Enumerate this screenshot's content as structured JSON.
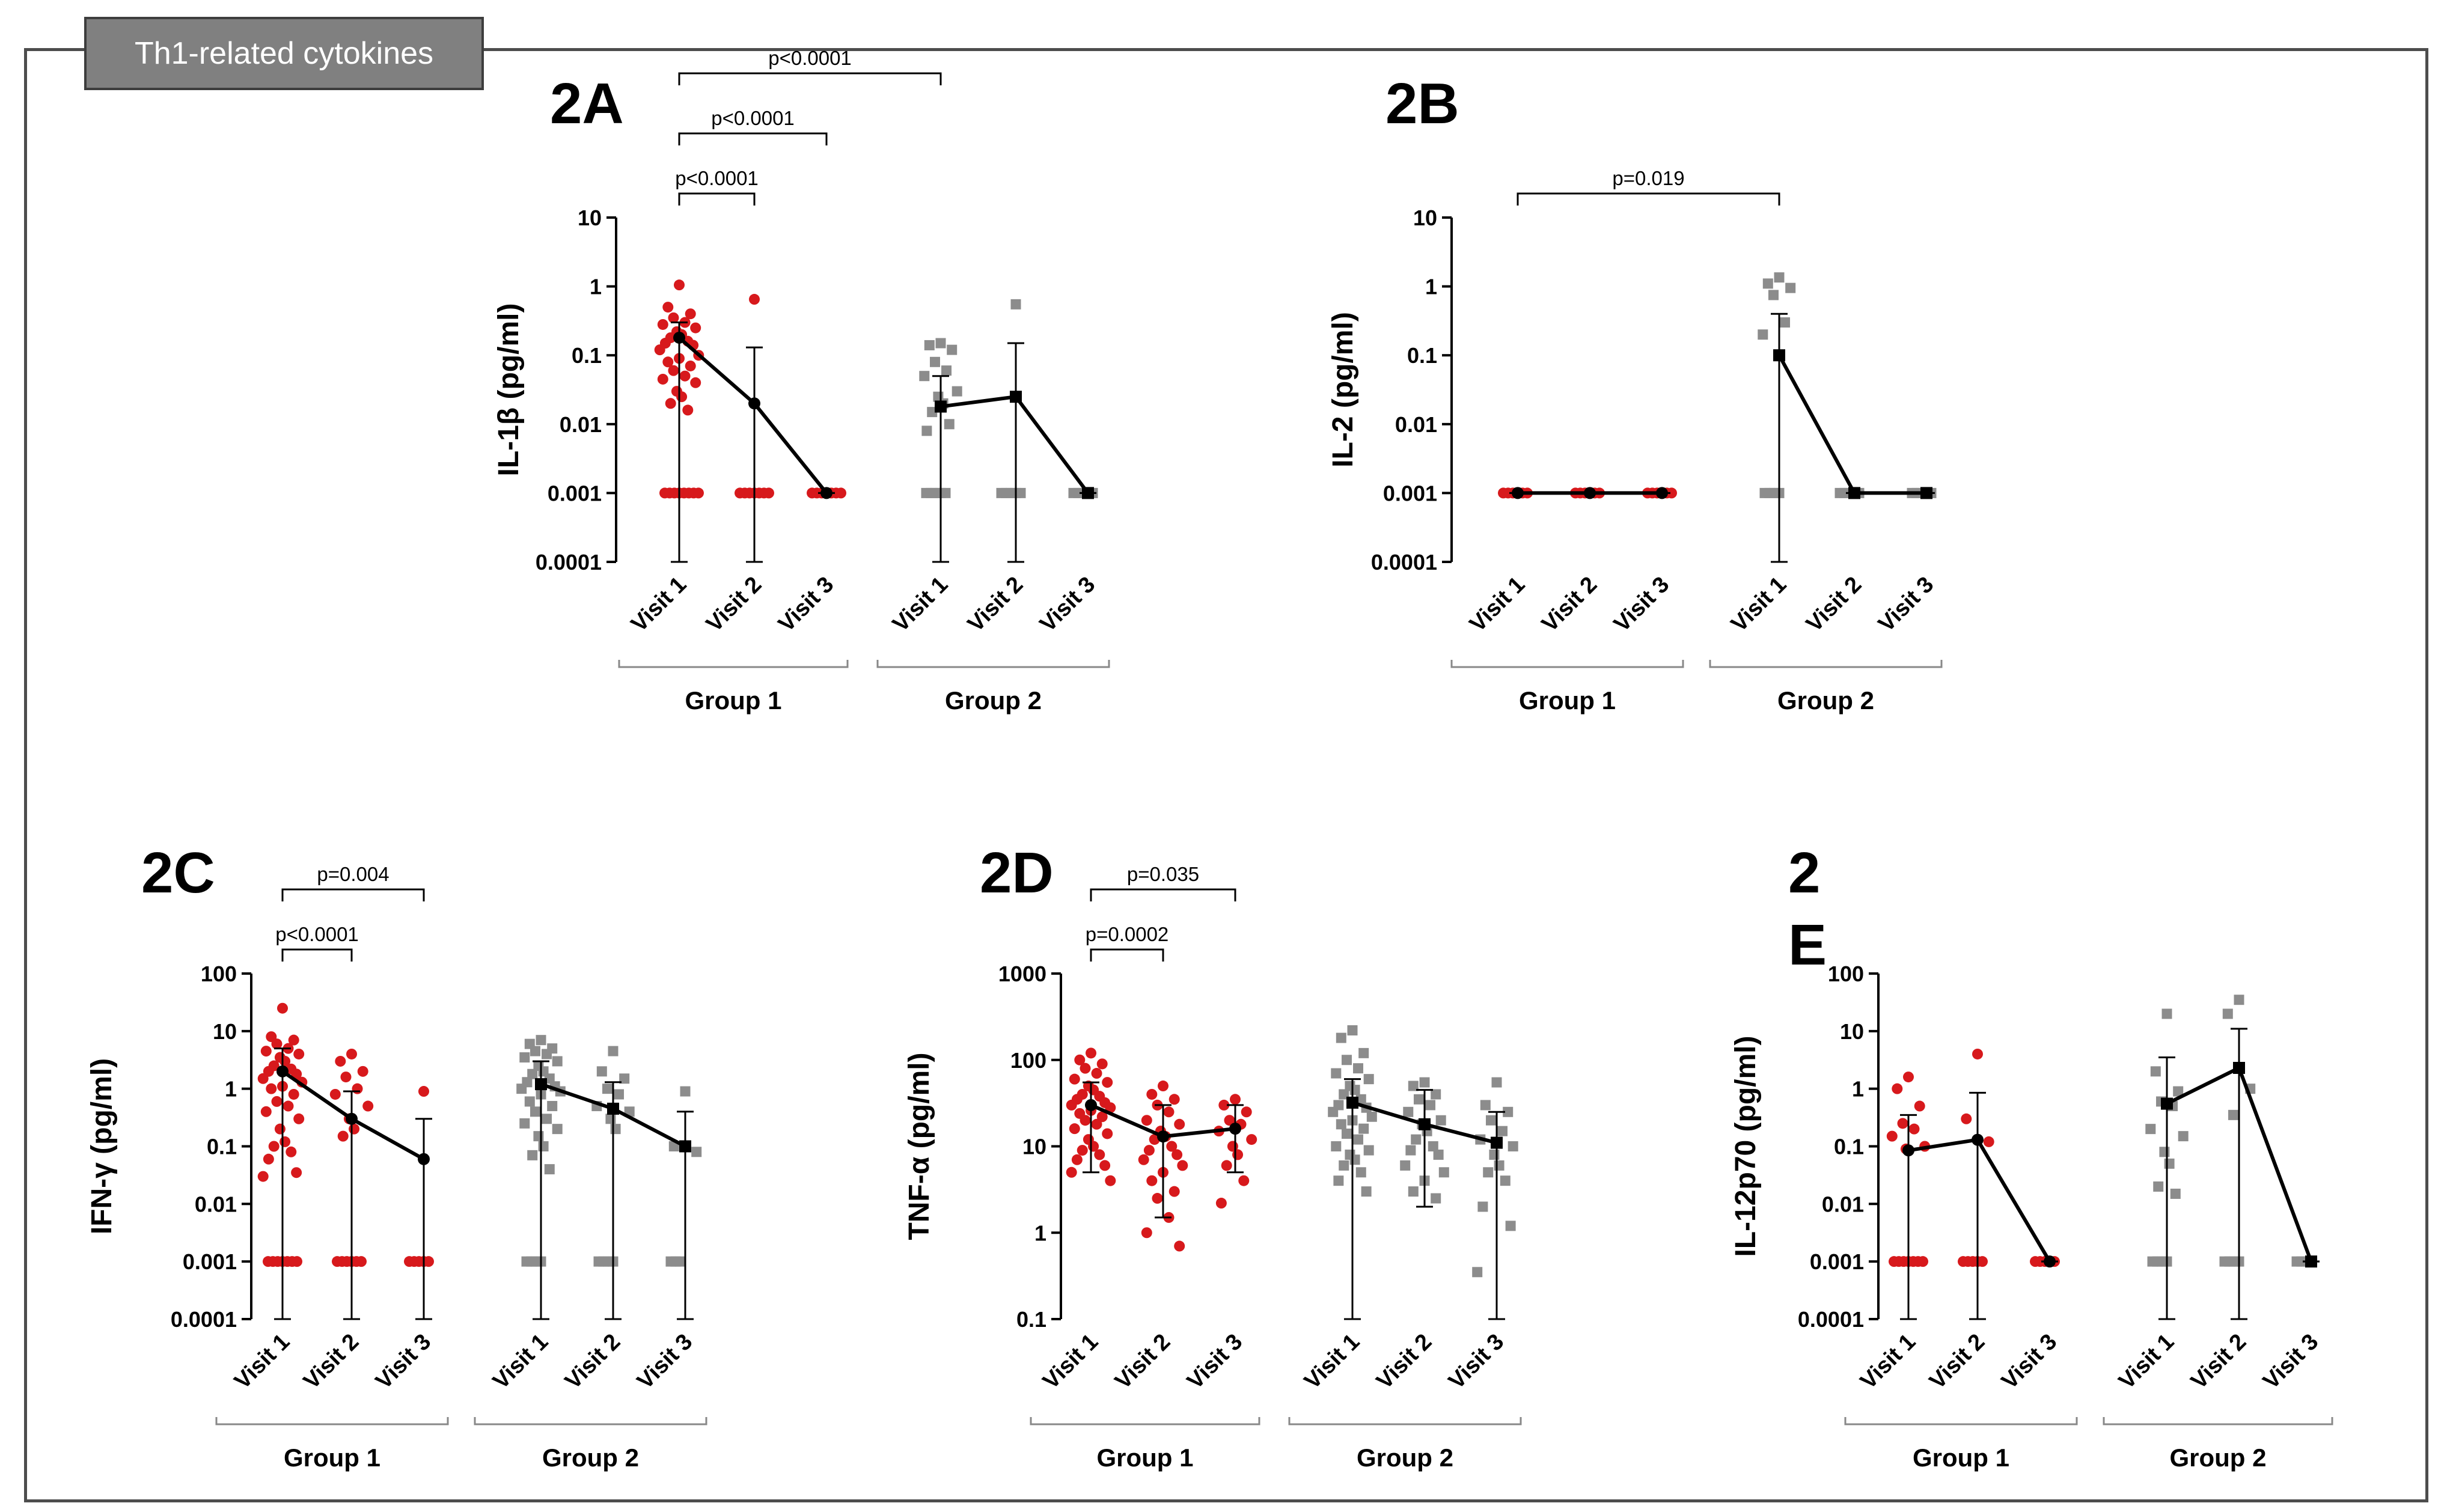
{
  "header": {
    "tag": "Th1-related cytokines"
  },
  "colors": {
    "group1": "#d7191c",
    "group2": "#8c8c8c",
    "line": "#000000"
  },
  "chart_data": [
    {
      "id": "2A",
      "type": "scatter",
      "title": "2A",
      "ylabel": "IL-1β (pg/ml)",
      "yscale": "log",
      "ylim": [
        0.0001,
        10
      ],
      "yticks": [
        "0.0001",
        "0.001",
        "0.01",
        "0.1",
        "1",
        "10"
      ],
      "categories": [
        "Visit 1",
        "Visit 2",
        "Visit 3",
        "Visit 1",
        "Visit 2",
        "Visit 3"
      ],
      "groups": [
        "Group 1",
        "Group 2"
      ],
      "series": [
        {
          "name": "Group 1",
          "mean": [
            0.18,
            0.02,
            0.001
          ],
          "err_lo": [
            0.0001,
            0.0001,
            0.001
          ],
          "err_hi": [
            0.3,
            0.13,
            0.001
          ],
          "points": [
            [
              1.05,
              0.5,
              0.4,
              0.35,
              0.3,
              0.28,
              0.25,
              0.22,
              0.2,
              0.18,
              0.16,
              0.15,
              0.14,
              0.12,
              0.1,
              0.09,
              0.08,
              0.07,
              0.06,
              0.05,
              0.045,
              0.04,
              0.03,
              0.025,
              0.02,
              0.016,
              0.001,
              0.001,
              0.001,
              0.001,
              0.001,
              0.001,
              0.001,
              0.001
            ],
            [
              0.65,
              0.001,
              0.001,
              0.001,
              0.001,
              0.001,
              0.001,
              0.001
            ],
            [
              0.001,
              0.001,
              0.001,
              0.001,
              0.001,
              0.001,
              0.001
            ]
          ]
        },
        {
          "name": "Group 2",
          "mean": [
            0.018,
            0.025,
            0.001
          ],
          "err_lo": [
            0.0001,
            0.0001,
            0.001
          ],
          "err_hi": [
            0.05,
            0.15,
            0.001
          ],
          "points": [
            [
              0.15,
              0.14,
              0.12,
              0.08,
              0.06,
              0.05,
              0.03,
              0.025,
              0.02,
              0.015,
              0.01,
              0.008,
              0.001,
              0.001,
              0.001,
              0.001,
              0.001
            ],
            [
              0.55,
              0.001,
              0.001,
              0.001,
              0.001,
              0.001
            ],
            [
              0.001,
              0.001,
              0.001,
              0.001,
              0.001
            ]
          ]
        }
      ],
      "comparisons": [
        {
          "label": "p<0.0001",
          "from": 0,
          "to": 1
        },
        {
          "label": "p<0.0001",
          "from": 0,
          "to": 2
        },
        {
          "label": "p<0.0001",
          "from": 0,
          "to": 3
        }
      ]
    },
    {
      "id": "2B",
      "type": "scatter",
      "title": "2B",
      "ylabel": "IL-2 (pg/ml)",
      "yscale": "log",
      "ylim": [
        0.0001,
        10
      ],
      "yticks": [
        "0.0001",
        "0.001",
        "0.01",
        "0.1",
        "1",
        "10"
      ],
      "categories": [
        "Visit 1",
        "Visit 2",
        "Visit 3",
        "Visit 1",
        "Visit 2",
        "Visit 3"
      ],
      "groups": [
        "Group 1",
        "Group 2"
      ],
      "series": [
        {
          "name": "Group 1",
          "mean": [
            0.001,
            0.001,
            0.001
          ],
          "err_lo": [
            0.001,
            0.001,
            0.001
          ],
          "err_hi": [
            0.001,
            0.001,
            0.001
          ],
          "points": [
            [
              0.001,
              0.001,
              0.001,
              0.001,
              0.001,
              0.001
            ],
            [
              0.001,
              0.001,
              0.001,
              0.001,
              0.001,
              0.001
            ],
            [
              0.001,
              0.001,
              0.001,
              0.001,
              0.001,
              0.001
            ]
          ]
        },
        {
          "name": "Group 2",
          "mean": [
            0.1,
            0.001,
            0.001
          ],
          "err_lo": [
            0.0001,
            0.001,
            0.001
          ],
          "err_hi": [
            0.4,
            0.001,
            0.001
          ],
          "points": [
            [
              1.35,
              1.1,
              0.95,
              0.75,
              0.3,
              0.2,
              0.001,
              0.001,
              0.001,
              0.001
            ],
            [
              0.001,
              0.001,
              0.001,
              0.001,
              0.001
            ],
            [
              0.001,
              0.001,
              0.001,
              0.001,
              0.001
            ]
          ]
        }
      ],
      "comparisons": [
        {
          "label": "p=0.019",
          "from": 0,
          "to": 3
        }
      ]
    },
    {
      "id": "2C",
      "type": "scatter",
      "title": "2C",
      "ylabel": "IFN-γ (pg/ml)",
      "yscale": "log",
      "ylim": [
        0.0001,
        100
      ],
      "yticks": [
        "0.0001",
        "0.001",
        "0.01",
        "0.1",
        "1",
        "10",
        "100"
      ],
      "categories": [
        "Visit 1",
        "Visit 2",
        "Visit 3",
        "Visit 1",
        "Visit 2",
        "Visit 3"
      ],
      "groups": [
        "Group 1",
        "Group 2"
      ],
      "series": [
        {
          "name": "Group 1",
          "mean": [
            2.0,
            0.3,
            0.06
          ],
          "err_lo": [
            0.0001,
            0.0001,
            0.0001
          ],
          "err_hi": [
            5.0,
            0.9,
            0.3
          ],
          "points": [
            [
              25,
              8,
              7,
              6,
              5,
              4.5,
              4,
              3.5,
              3,
              2.5,
              2.2,
              2,
              1.8,
              1.5,
              1.3,
              1.1,
              1,
              0.8,
              0.6,
              0.5,
              0.4,
              0.3,
              0.2,
              0.12,
              0.1,
              0.08,
              0.06,
              0.035,
              0.03,
              0.001,
              0.001,
              0.001,
              0.001,
              0.001,
              0.001,
              0.001
            ],
            [
              4,
              3,
              2,
              1.6,
              1,
              0.8,
              0.5,
              0.3,
              0.2,
              0.15,
              0.001,
              0.001,
              0.001,
              0.001,
              0.001,
              0.001
            ],
            [
              0.9,
              0.001,
              0.001,
              0.001,
              0.001,
              0.001
            ]
          ]
        },
        {
          "name": "Group 2",
          "mean": [
            1.2,
            0.45,
            0.1
          ],
          "err_lo": [
            0.0001,
            0.0001,
            0.0001
          ],
          "err_hi": [
            3.0,
            1.3,
            0.4
          ],
          "points": [
            [
              7,
              6,
              5,
              4.5,
              4,
              3.5,
              3,
              2.5,
              2,
              1.8,
              1.5,
              1.3,
              1.1,
              1,
              0.9,
              0.8,
              0.6,
              0.5,
              0.4,
              0.3,
              0.25,
              0.2,
              0.15,
              0.1,
              0.07,
              0.04,
              0.001,
              0.001,
              0.001,
              0.001
            ],
            [
              4.5,
              2,
              1.5,
              1,
              0.8,
              0.5,
              0.4,
              0.3,
              0.2,
              0.001,
              0.001,
              0.001,
              0.001
            ],
            [
              0.9,
              0.1,
              0.08,
              0.001,
              0.001,
              0.001
            ]
          ]
        }
      ],
      "comparisons": [
        {
          "label": "p<0.0001",
          "from": 0,
          "to": 1
        },
        {
          "label": "p=0.004",
          "from": 0,
          "to": 2
        }
      ]
    },
    {
      "id": "2D",
      "type": "scatter",
      "title": "2D",
      "ylabel": "TNF-α (pg/ml)",
      "yscale": "log",
      "ylim": [
        0.1,
        1000
      ],
      "yticks": [
        "0.1",
        "1",
        "10",
        "100",
        "1000"
      ],
      "categories": [
        "Visit 1",
        "Visit 2",
        "Visit 3",
        "Visit 1",
        "Visit 2",
        "Visit 3"
      ],
      "groups": [
        "Group 1",
        "Group 2"
      ],
      "series": [
        {
          "name": "Group 1",
          "mean": [
            30,
            13,
            16
          ],
          "err_lo": [
            5,
            1.5,
            5
          ],
          "err_hi": [
            55,
            30,
            30
          ],
          "points": [
            [
              120,
              100,
              90,
              80,
              70,
              60,
              55,
              50,
              45,
              40,
              38,
              35,
              32,
              30,
              28,
              26,
              24,
              22,
              20,
              18,
              16,
              14,
              12,
              10,
              9,
              8,
              7,
              6,
              5,
              4
            ],
            [
              50,
              40,
              35,
              30,
              25,
              20,
              18,
              15,
              13,
              12,
              10,
              9,
              8,
              7,
              6,
              5,
              4,
              3,
              2.5,
              1.5,
              1,
              0.7
            ],
            [
              35,
              30,
              25,
              20,
              18,
              15,
              12,
              10,
              8,
              6,
              4,
              2.2
            ]
          ]
        },
        {
          "name": "Group 2",
          "mean": [
            32,
            18,
            11
          ],
          "err_lo": [
            0.1,
            2,
            0.1
          ],
          "err_hi": [
            60,
            45,
            25
          ],
          "points": [
            [
              220,
              180,
              120,
              100,
              80,
              70,
              60,
              50,
              45,
              40,
              35,
              30,
              28,
              25,
              22,
              20,
              18,
              16,
              14,
              12,
              10,
              9,
              8,
              7,
              6,
              5,
              4,
              3
            ],
            [
              55,
              50,
              40,
              35,
              30,
              25,
              20,
              18,
              15,
              12,
              10,
              9,
              8,
              6,
              5,
              4,
              3,
              2.5
            ],
            [
              55,
              30,
              25,
              20,
              15,
              12,
              10,
              8,
              6,
              5,
              4,
              2,
              1.2,
              0.35
            ]
          ]
        }
      ],
      "comparisons": [
        {
          "label": "p=0.0002",
          "from": 0,
          "to": 1
        },
        {
          "label": "p=0.035",
          "from": 0,
          "to": 2
        }
      ]
    },
    {
      "id": "2E",
      "type": "scatter",
      "title": "2\nE",
      "ylabel": "IL-12p70 (pg/ml)",
      "yscale": "log",
      "ylim": [
        0.0001,
        100
      ],
      "yticks": [
        "0.0001",
        "0.001",
        "0.01",
        "0.1",
        "1",
        "10",
        "100"
      ],
      "categories": [
        "Visit 1",
        "Visit 2",
        "Visit 3",
        "Visit 1",
        "Visit 2",
        "Visit 3"
      ],
      "groups": [
        "Group 1",
        "Group 2"
      ],
      "series": [
        {
          "name": "Group 1",
          "mean": [
            0.085,
            0.13,
            0.001
          ],
          "err_lo": [
            0.0001,
            0.0001,
            0.001
          ],
          "err_hi": [
            0.35,
            0.85,
            0.001
          ],
          "points": [
            [
              1.6,
              1.0,
              0.5,
              0.25,
              0.2,
              0.15,
              0.1,
              0.09,
              0.001,
              0.001,
              0.001,
              0.001,
              0.001,
              0.001,
              0.001
            ],
            [
              4,
              0.3,
              0.12,
              0.001,
              0.001,
              0.001,
              0.001,
              0.001
            ],
            [
              0.001,
              0.001,
              0.001,
              0.001,
              0.001
            ]
          ]
        },
        {
          "name": "Group 2",
          "mean": [
            0.55,
            2.3,
            0.001
          ],
          "err_lo": [
            0.0001,
            0.0001,
            0.001
          ],
          "err_hi": [
            3.5,
            11,
            0.001
          ],
          "points": [
            [
              20,
              2,
              0.9,
              0.6,
              0.5,
              0.2,
              0.15,
              0.08,
              0.05,
              0.02,
              0.015,
              0.001,
              0.001,
              0.001,
              0.001
            ],
            [
              35,
              20,
              1,
              0.35,
              0.001,
              0.001,
              0.001,
              0.001
            ],
            [
              0.001,
              0.001,
              0.001
            ]
          ]
        }
      ],
      "comparisons": []
    }
  ]
}
